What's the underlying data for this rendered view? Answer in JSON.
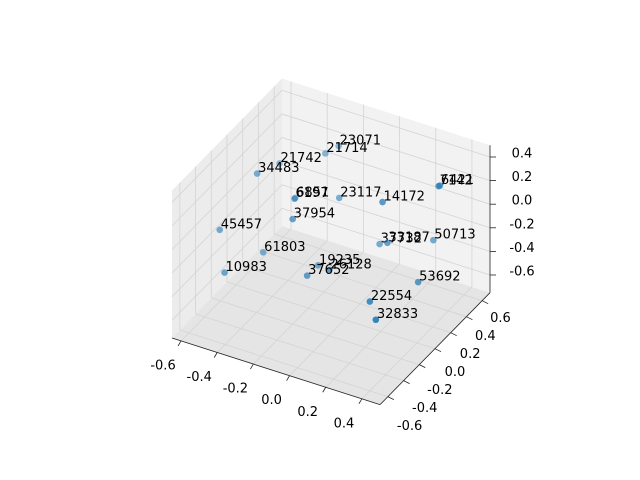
{
  "chart_data": {
    "type": "scatter3d",
    "color": "#1f77b4",
    "grid": true,
    "xlim": [
      -0.65,
      0.5
    ],
    "ylim": [
      -0.7,
      0.7
    ],
    "zlim": [
      -0.75,
      0.5
    ],
    "xticks": [
      -0.6,
      -0.4,
      -0.2,
      {
        "value": 0,
        "label": "0.0"
      },
      0.2,
      0.4
    ],
    "yticks": [
      -0.6,
      -0.4,
      -0.2,
      {
        "value": 0,
        "label": "0.0"
      },
      0.2,
      0.4,
      0.6
    ],
    "zticks": [
      -0.6,
      -0.4,
      -0.2,
      {
        "value": 0,
        "label": "0.0"
      },
      0.2,
      0.4
    ],
    "labels": [
      "23071",
      "21714",
      "21742",
      "34483",
      "6197",
      "6851",
      "23117",
      "14172",
      "7142",
      "6421",
      "37954",
      "45457",
      "61803",
      "37732",
      "33187",
      "50713",
      "19235",
      "26128",
      "37652",
      "10983",
      "53692",
      "22554",
      "32833"
    ],
    "x": [
      -0.25,
      -0.28,
      -0.49,
      -0.44,
      -0.32,
      -0.36,
      -0.16,
      0.21,
      0.39,
      0.31,
      -0.2,
      -0.56,
      -0.45,
      0.02,
      0.15,
      0.23,
      -0.19,
      -0.04,
      -0.12,
      -0.49,
      0.32,
      0.27,
      0.39
    ],
    "y": [
      0.5,
      0.4,
      0.3,
      -0.1,
      0.1,
      0.2,
      0.3,
      0.0,
      0.3,
      0.5,
      -0.2,
      -0.3,
      0.0,
      0.4,
      0.2,
      0.6,
      0.1,
      -0.1,
      -0.2,
      -0.4,
      0.2,
      -0.3,
      -0.5
    ],
    "z": [
      0.26,
      0.25,
      0.13,
      0.34,
      0.05,
      -0.03,
      0.0,
      0.35,
      0.37,
      0.2,
      0.14,
      -0.06,
      -0.4,
      -0.37,
      -0.16,
      -0.37,
      -0.45,
      -0.28,
      -0.3,
      -0.32,
      -0.41,
      -0.26,
      -0.22
    ]
  }
}
